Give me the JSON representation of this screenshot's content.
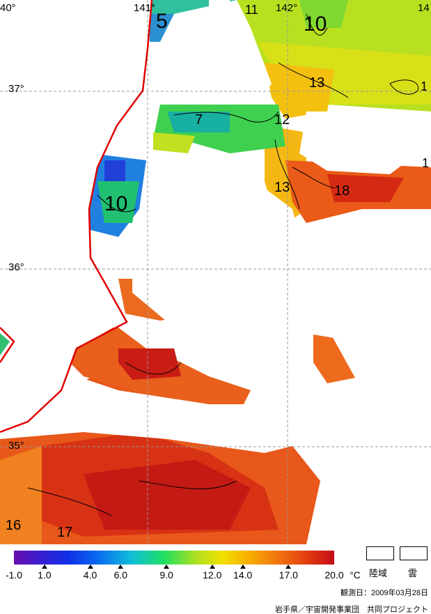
{
  "map": {
    "latitudes": [
      {
        "label": "37°"
      },
      {
        "label": "36°"
      },
      {
        "label": "35°"
      }
    ],
    "longitudes": [
      {
        "label": "40°"
      },
      {
        "label": "141°"
      },
      {
        "label": "142°"
      },
      {
        "label": "14"
      }
    ],
    "contour_labels": [
      "5",
      "11",
      "10",
      "13",
      "1",
      "7",
      "12",
      "1",
      "13",
      "18",
      "10",
      "16",
      "17"
    ],
    "colors": {
      "coastline": "#e00000",
      "grid": "#999999",
      "cloud": "#ffffff"
    }
  },
  "legend": {
    "unit": "°C",
    "ticks": [
      "-1.0",
      "1.0",
      "4.0",
      "6.0",
      "9.0",
      "12.0",
      "14.0",
      "17.0",
      "20.0"
    ],
    "tick_values": [
      -1.0,
      1.0,
      4.0,
      6.0,
      9.0,
      12.0,
      14.0,
      17.0,
      20.0
    ],
    "range": [
      -1.0,
      20.0
    ],
    "land_label": "陸域",
    "cloud_label": "雲"
  },
  "footer": {
    "observation_date": "観測日：2009年03月28日",
    "credit": "岩手県／宇宙開発事業団　共同プロジェクト"
  }
}
